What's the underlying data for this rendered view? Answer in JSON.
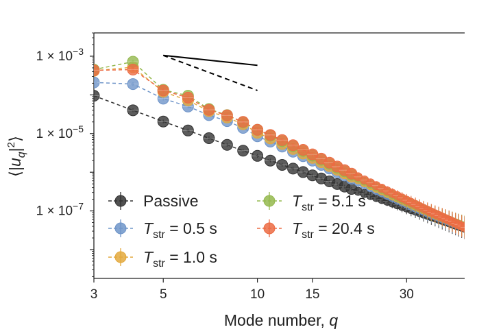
{
  "chart_data": {
    "type": "scatter",
    "title": "",
    "xlabel": "Mode number, q",
    "xlabel_parts": {
      "text": "Mode number, ",
      "var": "q"
    },
    "ylabel": "⟨|u_q|²⟩",
    "ylabel_parts": {
      "open": "⟨|",
      "var": "u",
      "sub": "q",
      "close": "|",
      "sup": "2",
      "end": "⟩"
    },
    "xscale": "log",
    "yscale": "log",
    "xlim": [
      3,
      46
    ],
    "ylim": [
      1.8e-09,
      0.004
    ],
    "xticks": [
      {
        "value": 3,
        "label": "3"
      },
      {
        "value": 5,
        "label": "5"
      },
      {
        "value": 10,
        "label": "10"
      },
      {
        "value": 15,
        "label": "15"
      },
      {
        "value": 30,
        "label": "30"
      }
    ],
    "yticks": [
      {
        "value": 0.001,
        "mant": "1 × 10",
        "exp": "−3"
      },
      {
        "value": 1e-05,
        "mant": "1 × 10",
        "exp": "−5"
      },
      {
        "value": 1e-07,
        "mant": "1 × 10",
        "exp": "−7"
      }
    ],
    "q": [
      3,
      4,
      5,
      6,
      7,
      8,
      9,
      10,
      11,
      12,
      13,
      14,
      15,
      16,
      17,
      18,
      19,
      20,
      21,
      22,
      23,
      24,
      25,
      26,
      27,
      28,
      29,
      30,
      31,
      32,
      33,
      34,
      35,
      36,
      37,
      38,
      39,
      40,
      41,
      42,
      43,
      44,
      45,
      46
    ],
    "series": [
      {
        "name": "Passive",
        "color": "#333333",
        "values": [
          9.5e-05,
          4e-05,
          2.05e-05,
          1.2e-05,
          7.6e-06,
          5.1e-06,
          3.6e-06,
          2.65e-06,
          2e-06,
          1.55e-06,
          1.24e-06,
          1.01e-06,
          8.3e-07,
          6.9e-07,
          5.8e-07,
          4.95e-07,
          4.25e-07,
          3.7e-07,
          3.22e-07,
          2.83e-07,
          2.5e-07,
          2.22e-07,
          1.98e-07,
          1.78e-07,
          1.6e-07,
          1.44e-07,
          1.31e-07,
          1.19e-07,
          1.08e-07,
          9.9e-08,
          9.1e-08,
          8.3e-08,
          7.7e-08,
          7.1e-08,
          6.6e-08,
          6.1e-08,
          5.7e-08,
          5.3e-08,
          4.95e-08,
          4.6e-08,
          4.3e-08,
          4.05e-08,
          3.8e-08,
          3.6e-08
        ]
      },
      {
        "name": "0.5 s",
        "color": "#6f95c9",
        "values": [
          0.00021,
          0.00019,
          8e-05,
          5e-05,
          3e-05,
          2.1e-05,
          1.4e-05,
          8.5e-06,
          6.2e-06,
          4.6e-06,
          3.4e-06,
          2.6e-06,
          2e-06,
          1.55e-06,
          1.25e-06,
          1e-06,
          8.2e-07,
          6.8e-07,
          5.6e-07,
          4.7e-07,
          4e-07,
          3.4e-07,
          2.95e-07,
          2.55e-07,
          2.22e-07,
          1.95e-07,
          1.72e-07,
          1.52e-07,
          1.35e-07,
          1.2e-07,
          1.08e-07,
          9.8e-08,
          8.9e-08,
          8.1e-08,
          7.4e-08,
          6.8e-08,
          6.3e-08,
          5.8e-08,
          5.4e-08,
          5e-08,
          4.65e-08,
          4.35e-08,
          4.05e-08,
          3.8e-08
        ]
      },
      {
        "name": "1.0 s",
        "color": "#e3a93d",
        "values": [
          0.00042,
          0.00052,
          0.00012,
          7.2e-05,
          3.8e-05,
          2.6e-05,
          1.75e-05,
          1.05e-05,
          7.5e-06,
          5.4e-06,
          4e-06,
          3.05e-06,
          2.35e-06,
          1.82e-06,
          1.45e-06,
          1.16e-06,
          9.4e-07,
          7.7e-07,
          6.4e-07,
          5.35e-07,
          4.5e-07,
          3.85e-07,
          3.3e-07,
          2.85e-07,
          2.48e-07,
          2.17e-07,
          1.9e-07,
          1.68e-07,
          1.49e-07,
          1.33e-07,
          1.19e-07,
          1.07e-07,
          9.7e-08,
          8.8e-08,
          8e-08,
          7.3e-08,
          6.7e-08,
          6.2e-08,
          5.7e-08,
          5.25e-08,
          4.85e-08,
          4.5e-08,
          4.2e-08,
          3.9e-08
        ]
      },
      {
        "name": "5.1 s",
        "color": "#94b84e",
        "values": [
          0.00045,
          0.00072,
          0.000135,
          9.5e-05,
          4.3e-05,
          3e-05,
          1.95e-05,
          1.25e-05,
          8.8e-06,
          6.4e-06,
          4.7e-06,
          3.55e-06,
          2.7e-06,
          2.1e-06,
          1.65e-06,
          1.31e-06,
          1.06e-06,
          8.6e-07,
          7.1e-07,
          5.9e-07,
          4.95e-07,
          4.2e-07,
          3.6e-07,
          3.1e-07,
          2.68e-07,
          2.33e-07,
          2.04e-07,
          1.79e-07,
          1.58e-07,
          1.4e-07,
          1.25e-07,
          1.12e-07,
          1e-07,
          9.1e-08,
          8.2e-08,
          7.5e-08,
          6.8e-08,
          6.25e-08,
          5.75e-08,
          5.3e-08,
          4.9e-08,
          4.55e-08,
          4.2e-08,
          3.9e-08
        ]
      },
      {
        "name": "20.4 s",
        "color": "#ec6b43",
        "values": [
          0.00043,
          0.00045,
          0.00013,
          8.5e-05,
          4.1e-05,
          2.95e-05,
          2e-05,
          1.25e-05,
          9.2e-06,
          6.8e-06,
          5e-06,
          3.8e-06,
          2.9e-06,
          2.25e-06,
          1.77e-06,
          1.4e-06,
          1.13e-06,
          9.2e-07,
          7.6e-07,
          6.3e-07,
          5.3e-07,
          4.5e-07,
          3.85e-07,
          3.3e-07,
          2.85e-07,
          2.48e-07,
          2.16e-07,
          1.89e-07,
          1.66e-07,
          1.47e-07,
          1.3e-07,
          1.16e-07,
          1.04e-07,
          9.3e-08,
          8.4e-08,
          7.6e-08,
          6.9e-08,
          6.3e-08,
          5.75e-08,
          5.25e-08,
          4.8e-08,
          4.4e-08,
          4.05e-08,
          3.75e-08
        ]
      }
    ],
    "reference_lines": [
      {
        "name": "slope-solid-ref",
        "style": "solid",
        "x": [
          5,
          10
        ],
        "y": [
          0.00105,
          0.00058
        ]
      },
      {
        "name": "slope-dashed-ref",
        "style": "dashed",
        "x": [
          5,
          10
        ],
        "y": [
          0.00105,
          0.00013
        ]
      },
      {
        "name": "long-solid-fit",
        "style": "solid",
        "x": [
          20,
          46
        ],
        "y": [
          3.7e-07,
          3.6e-08
        ]
      }
    ],
    "legend": {
      "placement": "lower-left",
      "entries": [
        {
          "series": "Passive",
          "text": "Passive"
        },
        {
          "series": "0.5 s",
          "var": "T",
          "sub": "str",
          "text": " = 0.5 s"
        },
        {
          "series": "1.0 s",
          "var": "T",
          "sub": "str",
          "text": " = 1.0 s"
        },
        {
          "series": "5.1 s",
          "var": "T",
          "sub": "str",
          "text": " = 5.1 s"
        },
        {
          "series": "20.4 s",
          "var": "T",
          "sub": "str",
          "text": " = 20.4 s"
        }
      ]
    }
  }
}
